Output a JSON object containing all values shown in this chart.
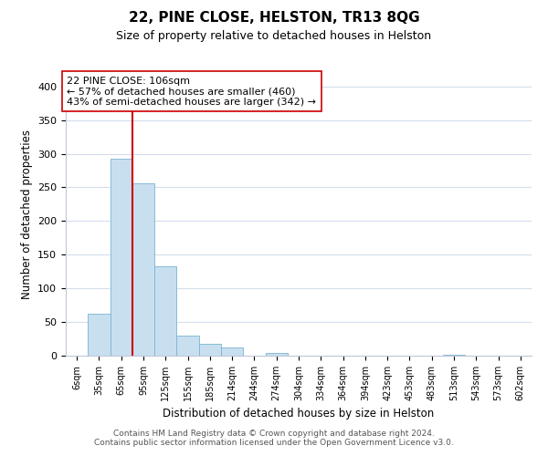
{
  "title": "22, PINE CLOSE, HELSTON, TR13 8QG",
  "subtitle": "Size of property relative to detached houses in Helston",
  "xlabel": "Distribution of detached houses by size in Helston",
  "ylabel": "Number of detached properties",
  "bin_labels": [
    "6sqm",
    "35sqm",
    "65sqm",
    "95sqm",
    "125sqm",
    "155sqm",
    "185sqm",
    "214sqm",
    "244sqm",
    "274sqm",
    "304sqm",
    "334sqm",
    "364sqm",
    "394sqm",
    "423sqm",
    "453sqm",
    "483sqm",
    "513sqm",
    "543sqm",
    "573sqm",
    "602sqm"
  ],
  "bar_heights": [
    0,
    62,
    293,
    256,
    133,
    30,
    18,
    12,
    0,
    4,
    0,
    0,
    0,
    0,
    0,
    0,
    0,
    1,
    0,
    0,
    0
  ],
  "bar_color": "#c8dff0",
  "bar_edge_color": "#7ab3d0",
  "vline_x": 3,
  "vline_color": "#cc0000",
  "ylim": [
    0,
    420
  ],
  "yticks": [
    0,
    50,
    100,
    150,
    200,
    250,
    300,
    350,
    400
  ],
  "annotation_title": "22 PINE CLOSE: 106sqm",
  "annotation_line1": "← 57% of detached houses are smaller (460)",
  "annotation_line2": "43% of semi-detached houses are larger (342) →",
  "footer_line1": "Contains HM Land Registry data © Crown copyright and database right 2024.",
  "footer_line2": "Contains public sector information licensed under the Open Government Licence v3.0.",
  "background_color": "#ffffff",
  "grid_color": "#d4dded"
}
